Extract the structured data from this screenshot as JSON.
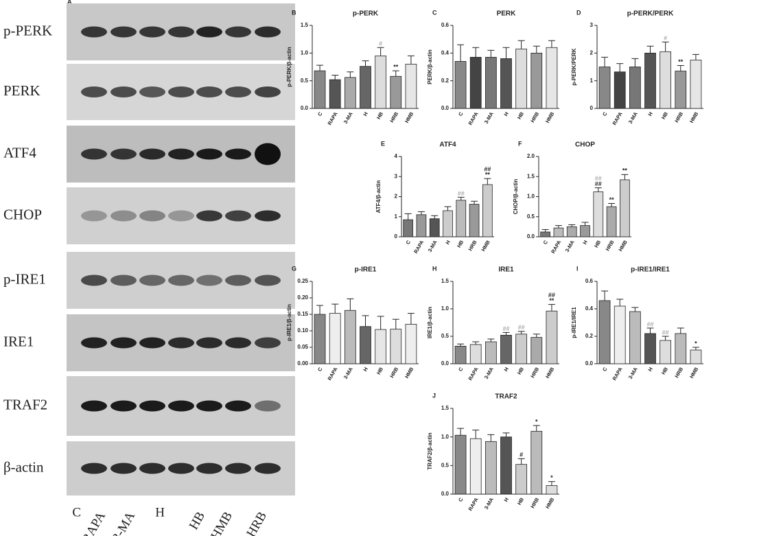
{
  "blot": {
    "label": "A",
    "rows": [
      "p-PERK",
      "PERK",
      "ATF4",
      "CHOP",
      "p-IRE1",
      "IRE1",
      "TRAF2",
      "β-actin"
    ],
    "lanes": [
      "C",
      "RAPA",
      "3-MA",
      "H",
      "HB",
      "HMB",
      "HRB"
    ]
  },
  "chart_data": [
    {
      "type": "bar",
      "letter": "B",
      "title": "p-PERK",
      "y_label": "p-PERK/β-actin",
      "categories": [
        "C",
        "RAPA",
        "3-MA",
        "H",
        "HB",
        "HRB",
        "HMB"
      ],
      "values": [
        0.68,
        0.52,
        0.56,
        0.76,
        0.95,
        0.58,
        0.8
      ],
      "errors": [
        0.1,
        0.08,
        0.1,
        0.1,
        0.15,
        0.1,
        0.15
      ],
      "colors": [
        "#888",
        "#555",
        "#aaa",
        "#666",
        "#ddd",
        "#999",
        "#e6e6e6"
      ],
      "ylim": [
        0,
        1.5
      ],
      "yticks": [
        {
          "value": 0,
          "label": "0.0"
        },
        0.5,
        {
          "value": 1,
          "label": "1.0"
        },
        1.5
      ],
      "annotations": [
        [],
        [],
        [],
        [],
        [
          {
            "text": "#",
            "color": "#aaa"
          }
        ],
        [
          {
            "text": "**",
            "color": "#222"
          }
        ],
        []
      ]
    },
    {
      "type": "bar",
      "letter": "C",
      "title": "PERK",
      "y_label": "PERK/β-actin",
      "categories": [
        "C",
        "RAPA",
        "3-MA",
        "H",
        "HB",
        "HRB",
        "HMB"
      ],
      "values": [
        0.34,
        0.37,
        0.37,
        0.36,
        0.43,
        0.4,
        0.44
      ],
      "errors": [
        0.12,
        0.07,
        0.05,
        0.08,
        0.06,
        0.05,
        0.05
      ],
      "colors": [
        "#888",
        "#444",
        "#777",
        "#555",
        "#ddd",
        "#999",
        "#e6e6e6"
      ],
      "ylim": [
        0,
        0.6
      ],
      "yticks": [
        {
          "value": 0,
          "label": "0.0"
        },
        0.2,
        0.4,
        0.6
      ],
      "annotations": [
        [],
        [],
        [],
        [],
        [],
        [],
        []
      ]
    },
    {
      "type": "bar",
      "letter": "D",
      "title": "p-PERK/PERK",
      "y_label": "p-PERK/PERK",
      "categories": [
        "C",
        "RAPA",
        "3-MA",
        "H",
        "HB",
        "HRB",
        "HMB"
      ],
      "values": [
        1.5,
        1.32,
        1.5,
        2.0,
        2.05,
        1.35,
        1.75
      ],
      "errors": [
        0.35,
        0.3,
        0.3,
        0.25,
        0.35,
        0.2,
        0.2
      ],
      "colors": [
        "#888",
        "#444",
        "#777",
        "#555",
        "#ddd",
        "#999",
        "#e6e6e6"
      ],
      "ylim": [
        0,
        3
      ],
      "yticks": [
        0,
        1,
        2,
        3
      ],
      "annotations": [
        [],
        [],
        [],
        [],
        [
          {
            "text": "#",
            "color": "#aaa"
          }
        ],
        [
          {
            "text": "**",
            "color": "#222"
          }
        ],
        []
      ]
    },
    {
      "type": "bar",
      "letter": "E",
      "title": "ATF4",
      "y_label": "ATF4/β-actin",
      "categories": [
        "C",
        "RAPA",
        "3-MA",
        "H",
        "HB",
        "HRB",
        "HMB"
      ],
      "values": [
        0.85,
        1.1,
        0.9,
        1.3,
        1.82,
        1.62,
        2.6
      ],
      "errors": [
        0.3,
        0.15,
        0.15,
        0.2,
        0.15,
        0.15,
        0.3
      ],
      "colors": [
        "#777",
        "#999",
        "#555",
        "#ccc",
        "#bbb",
        "#999",
        "#ccc"
      ],
      "ylim": [
        0,
        4
      ],
      "yticks": [
        0,
        1,
        2,
        3,
        4
      ],
      "annotations": [
        [],
        [],
        [],
        [],
        [
          {
            "text": "##",
            "color": "#aaa"
          }
        ],
        [],
        [
          {
            "text": "**",
            "color": "#222"
          },
          {
            "text": "##",
            "color": "#222"
          }
        ]
      ]
    },
    {
      "type": "bar",
      "letter": "F",
      "title": "CHOP",
      "y_label": "CHOP/β-actin",
      "categories": [
        "C",
        "RAPA",
        "3-MA",
        "H",
        "HB",
        "HRB",
        "HMB"
      ],
      "values": [
        0.12,
        0.22,
        0.25,
        0.28,
        1.12,
        0.75,
        1.42
      ],
      "errors": [
        0.06,
        0.06,
        0.05,
        0.08,
        0.1,
        0.08,
        0.13
      ],
      "colors": [
        "#777",
        "#bbb",
        "#aaa",
        "#999",
        "#ddd",
        "#aaa",
        "#ccc"
      ],
      "ylim": [
        0,
        2
      ],
      "yticks": [
        {
          "value": 0,
          "label": "0.0"
        },
        0.5,
        {
          "value": 1,
          "label": "1.0"
        },
        1.5,
        {
          "value": 2,
          "label": "2.0"
        }
      ],
      "annotations": [
        [],
        [],
        [],
        [],
        [
          {
            "text": "##",
            "color": "#222"
          },
          {
            "text": "##",
            "color": "#aaa"
          }
        ],
        [
          {
            "text": "**",
            "color": "#222"
          }
        ],
        [
          {
            "text": "**",
            "color": "#222"
          }
        ]
      ]
    },
    {
      "type": "bar",
      "letter": "G",
      "title": "p-IRE1",
      "y_label": "p-IRE1/β-actin",
      "categories": [
        "C",
        "RAPA",
        "3-MA",
        "H",
        "HB",
        "HRB",
        "HMB"
      ],
      "values": [
        0.15,
        0.153,
        0.162,
        0.113,
        0.104,
        0.105,
        0.12
      ],
      "errors": [
        0.027,
        0.028,
        0.035,
        0.033,
        0.04,
        0.03,
        0.033
      ],
      "colors": [
        "#888",
        "#eee",
        "#bbb",
        "#666",
        "#e6e6e6",
        "#ddd",
        "#eee"
      ],
      "ylim": [
        0,
        0.25
      ],
      "yticks": [
        {
          "value": 0,
          "label": "0.00"
        },
        0.05,
        {
          "value": 0.1,
          "label": "0.10"
        },
        0.15,
        {
          "value": 0.2,
          "label": "0.20"
        },
        0.25
      ],
      "annotations": [
        [],
        [],
        [],
        [],
        [],
        [],
        []
      ]
    },
    {
      "type": "bar",
      "letter": "H",
      "title": "IRE1",
      "y_label": "IRE1/β-actin",
      "categories": [
        "C",
        "RAPA",
        "3-MA",
        "H",
        "HB",
        "HRB",
        "HMB"
      ],
      "values": [
        0.32,
        0.35,
        0.4,
        0.52,
        0.54,
        0.48,
        0.96
      ],
      "errors": [
        0.04,
        0.05,
        0.05,
        0.05,
        0.05,
        0.06,
        0.12
      ],
      "colors": [
        "#888",
        "#ddd",
        "#bbb",
        "#666",
        "#ccc",
        "#aaa",
        "#ccc"
      ],
      "ylim": [
        0,
        1.5
      ],
      "yticks": [
        {
          "value": 0,
          "label": "0.0"
        },
        0.5,
        {
          "value": 1,
          "label": "1.0"
        },
        1.5
      ],
      "annotations": [
        [],
        [],
        [],
        [
          {
            "text": "##",
            "color": "#aaa"
          }
        ],
        [
          {
            "text": "##",
            "color": "#aaa"
          }
        ],
        [],
        [
          {
            "text": "**",
            "color": "#222"
          },
          {
            "text": "##",
            "color": "#222"
          }
        ]
      ]
    },
    {
      "type": "bar",
      "letter": "I",
      "title": "p-IRE1/IRE1",
      "y_label": "p-IRE1/IRE1",
      "categories": [
        "C",
        "RAPA",
        "3-MA",
        "H",
        "HB",
        "HRB",
        "HMB"
      ],
      "values": [
        0.46,
        0.42,
        0.38,
        0.22,
        0.17,
        0.22,
        0.1
      ],
      "errors": [
        0.07,
        0.05,
        0.03,
        0.04,
        0.03,
        0.04,
        0.02
      ],
      "colors": [
        "#888",
        "#eee",
        "#bbb",
        "#555",
        "#ddd",
        "#bbb",
        "#ddd"
      ],
      "ylim": [
        0,
        0.6
      ],
      "yticks": [
        {
          "value": 0,
          "label": "0.0"
        },
        0.2,
        0.4,
        0.6
      ],
      "annotations": [
        [],
        [],
        [],
        [
          {
            "text": "##",
            "color": "#aaa"
          }
        ],
        [
          {
            "text": "##",
            "color": "#aaa"
          }
        ],
        [],
        [
          {
            "text": "*",
            "color": "#222"
          }
        ]
      ]
    },
    {
      "type": "bar",
      "letter": "J",
      "title": "TRAF2",
      "y_label": "TRAF2/β-actin",
      "categories": [
        "C",
        "RAPA",
        "3-MA",
        "H",
        "HB",
        "HRB",
        "HMB"
      ],
      "values": [
        1.03,
        0.97,
        0.92,
        1.0,
        0.52,
        1.1,
        0.15
      ],
      "errors": [
        0.12,
        0.15,
        0.12,
        0.07,
        0.1,
        0.1,
        0.07
      ],
      "colors": [
        "#888",
        "#eee",
        "#bbb",
        "#555",
        "#ccc",
        "#bbb",
        "#ddd"
      ],
      "ylim": [
        0,
        1.5
      ],
      "yticks": [
        {
          "value": 0,
          "label": "0.0"
        },
        0.5,
        {
          "value": 1,
          "label": "1.0"
        },
        1.5
      ],
      "annotations": [
        [],
        [],
        [],
        [],
        [
          {
            "text": "#",
            "color": "#222"
          }
        ],
        [
          {
            "text": "*",
            "color": "#222"
          }
        ],
        [
          {
            "text": "*",
            "color": "#222"
          }
        ]
      ]
    }
  ]
}
